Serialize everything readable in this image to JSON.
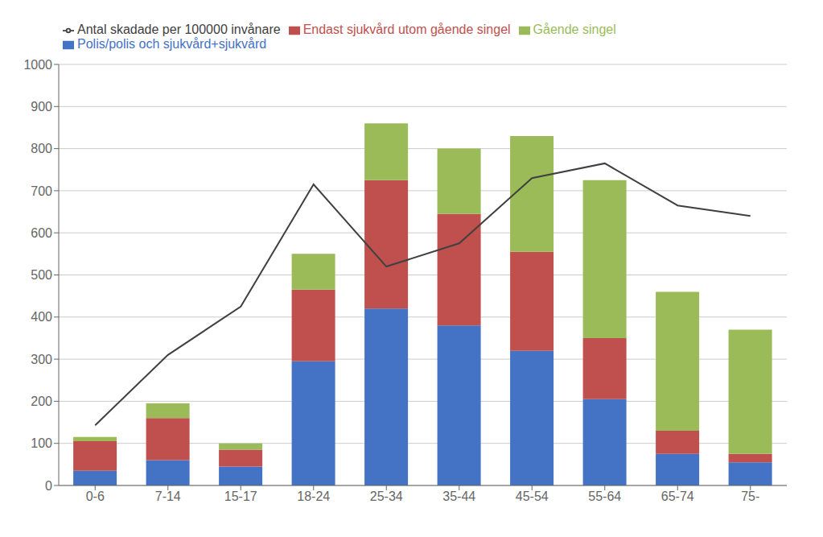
{
  "chart_data": {
    "type": "bar",
    "stacked": true,
    "categories": [
      "0-6",
      "7-14",
      "15-17",
      "18-24",
      "25-34",
      "35-44",
      "45-54",
      "55-64",
      "65-74",
      "75-"
    ],
    "series": [
      {
        "name": "Polis/polis och sjukvård+sjukvård",
        "type": "bar",
        "color": "#4472C4",
        "values": [
          35,
          60,
          45,
          295,
          420,
          380,
          320,
          205,
          75,
          55
        ]
      },
      {
        "name": "Endast sjukvård utom gående singel",
        "type": "bar",
        "color": "#C0504D",
        "values": [
          70,
          100,
          40,
          170,
          305,
          265,
          235,
          145,
          55,
          20
        ]
      },
      {
        "name": "Gående singel",
        "type": "bar",
        "color": "#9BBB59",
        "values": [
          10,
          35,
          15,
          85,
          135,
          155,
          275,
          375,
          330,
          295
        ]
      },
      {
        "name": "Antal skadade per 100000 invånare",
        "type": "line",
        "color": "#404040",
        "values": [
          143,
          310,
          425,
          715,
          520,
          575,
          730,
          765,
          665,
          640
        ]
      }
    ],
    "ylim": [
      0,
      1000
    ],
    "yticks": [
      0,
      100,
      200,
      300,
      400,
      500,
      600,
      700,
      800,
      900,
      1000
    ],
    "grid": true,
    "legend": "top"
  }
}
